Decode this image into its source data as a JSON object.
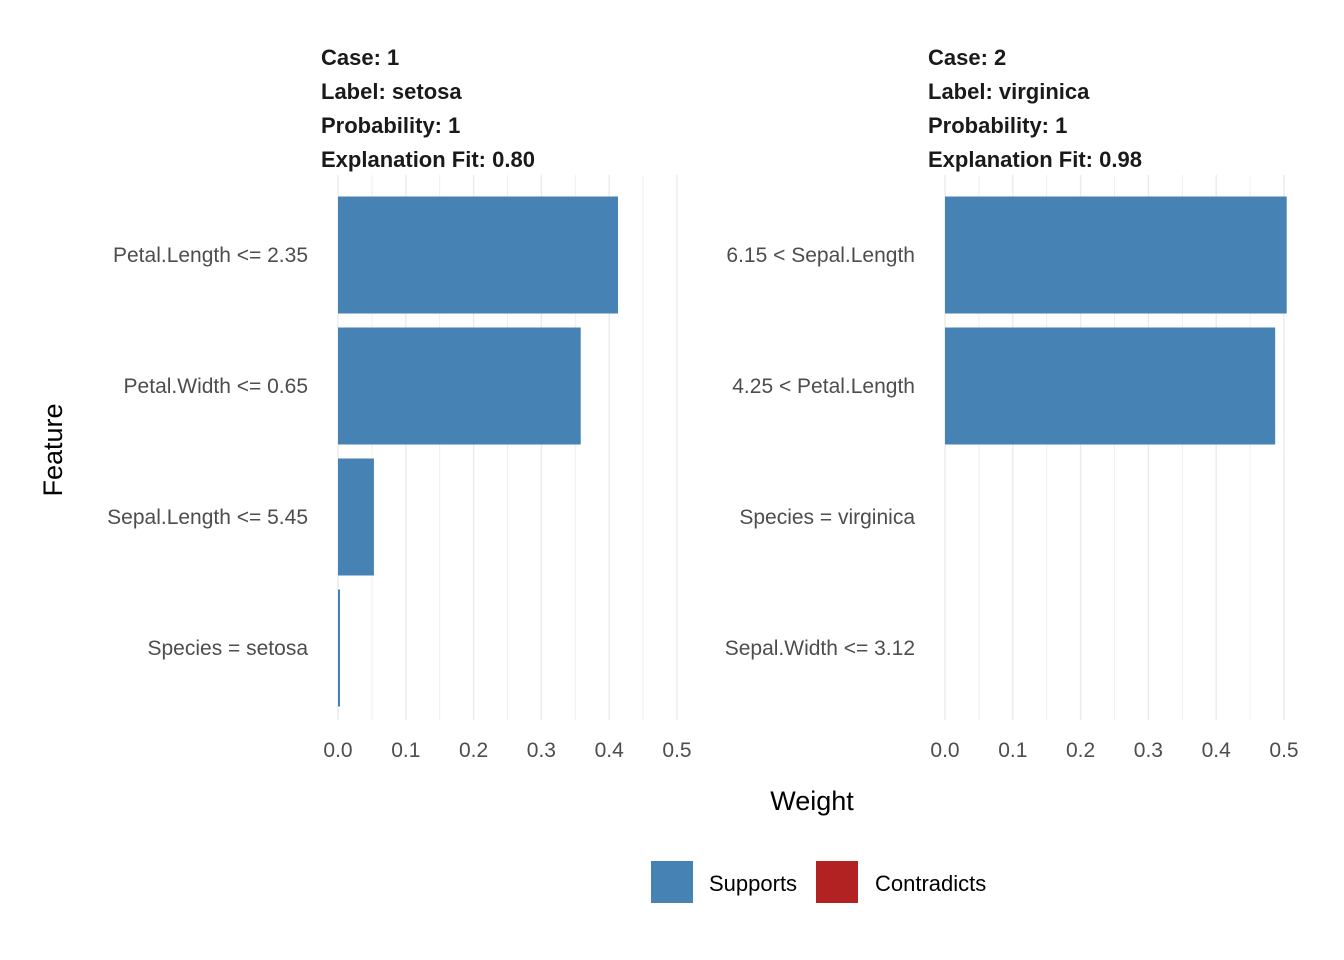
{
  "chart_data": {
    "type": "bar",
    "orientation": "horizontal",
    "xlabel": "Weight",
    "ylabel": "Feature",
    "xlim": [
      0,
      0.5
    ],
    "x_ticks": [
      "0.0",
      "0.1",
      "0.2",
      "0.3",
      "0.4",
      "0.5"
    ],
    "x_tick_values": [
      0,
      0.1,
      0.2,
      0.3,
      0.4,
      0.5
    ],
    "grid": true,
    "legend": {
      "placement": "bottom",
      "entries": [
        {
          "label": "Supports",
          "color": "#4682B4"
        },
        {
          "label": "Contradicts",
          "color": "#B22222"
        }
      ]
    },
    "panels": [
      {
        "title_lines": [
          "Case: 1",
          "Label: setosa",
          "Probability: 1",
          "Explanation Fit: 0.80"
        ],
        "case": 1,
        "label": "setosa",
        "probability": 1,
        "explanation_fit": 0.8,
        "categories": [
          "Petal.Length <= 2.35",
          "Petal.Width <= 0.65",
          "Sepal.Length <= 5.45",
          "Species = setosa"
        ],
        "values": [
          0.413,
          0.358,
          0.053,
          0.003
        ],
        "types": [
          "Supports",
          "Supports",
          "Supports",
          "Supports"
        ]
      },
      {
        "title_lines": [
          "Case: 2",
          "Label: virginica",
          "Probability: 1",
          "Explanation Fit: 0.98"
        ],
        "case": 2,
        "label": "virginica",
        "probability": 1,
        "explanation_fit": 0.98,
        "categories": [
          "6.15 < Sepal.Length",
          "4.25 < Petal.Length",
          "Species = virginica",
          "Sepal.Width <= 3.12"
        ],
        "values": [
          0.504,
          0.487,
          0.0,
          0.0
        ],
        "types": [
          "Supports",
          "Supports",
          "Supports",
          "Supports"
        ]
      }
    ]
  }
}
